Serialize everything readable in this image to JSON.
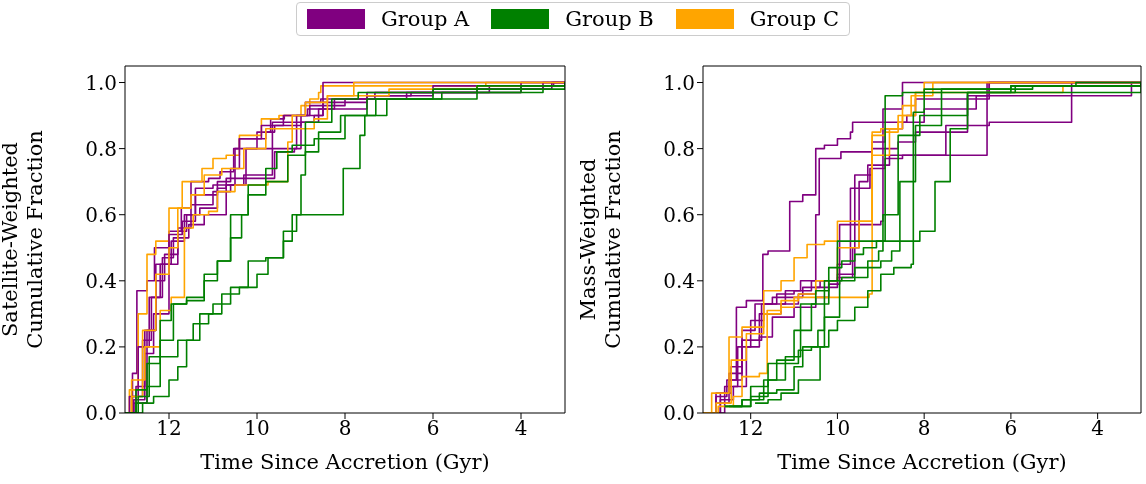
{
  "chart_data": [
    {
      "type": "step",
      "xlabel": "Time Since Accretion (Gyr)",
      "ylabel": "Satellite-Weighted\nCumulative Fraction",
      "xlim": [
        13.0,
        3.0
      ],
      "ylim": [
        0,
        1.05
      ],
      "xticks": [
        12,
        10,
        8,
        6,
        4
      ],
      "yticks": [
        {
          "value": 0,
          "label": "0.0"
        },
        {
          "value": 0.2,
          "label": "0.2"
        },
        {
          "value": 0.4,
          "label": "0.4"
        },
        {
          "value": 0.6,
          "label": "0.6"
        },
        {
          "value": 0.8,
          "label": "0.8"
        },
        {
          "value": 1.0,
          "label": "1.0"
        }
      ],
      "legend": "top",
      "marker": "none",
      "line_style": "solid",
      "series": [
        {
          "name": "Group A",
          "color": "#800080",
          "x": [
            13.0,
            12.83,
            12.73,
            12.5,
            12.33,
            12.0,
            11.72,
            11.5,
            11.1,
            10.84,
            10.53,
            10.0,
            9.69,
            9.38,
            8.85,
            8.24,
            7.32,
            4.72,
            3.26,
            3.0
          ],
          "values": [
            0,
            0.12,
            0.37,
            0.4,
            0.5,
            0.55,
            0.62,
            0.7,
            0.71,
            0.73,
            0.8,
            0.85,
            0.89,
            0.9,
            0.92,
            0.95,
            0.97,
            0.99,
            1.0,
            1.0
          ]
        },
        {
          "name": "Group B",
          "color": "#008000",
          "x": [
            13.0,
            12.6,
            12.35,
            12.0,
            11.8,
            11.6,
            11.3,
            11.0,
            10.6,
            10.2,
            9.8,
            9.4,
            9.1,
            8.04,
            7.66,
            7.55,
            7.05,
            5.8,
            3.5,
            3.0
          ],
          "values": [
            0,
            0.03,
            0.05,
            0.1,
            0.14,
            0.22,
            0.3,
            0.33,
            0.38,
            0.46,
            0.47,
            0.55,
            0.6,
            0.74,
            0.84,
            0.9,
            0.95,
            0.97,
            0.99,
            1.0
          ]
        },
        {
          "name": "Group C",
          "color": "#ffa500",
          "x": [
            13.0,
            12.9,
            12.7,
            12.5,
            12.3,
            12.0,
            11.7,
            11.25,
            11.0,
            10.7,
            10.4,
            9.9,
            9.5,
            9.0,
            8.8,
            8.6,
            8.55,
            4.8,
            3.0
          ],
          "values": [
            0,
            0.07,
            0.3,
            0.48,
            0.52,
            0.62,
            0.7,
            0.74,
            0.77,
            0.78,
            0.84,
            0.89,
            0.9,
            0.93,
            0.95,
            0.97,
            0.99,
            1.0,
            1.0
          ]
        },
        {
          "color": "#800080",
          "x": [
            13.0,
            12.9,
            12.7,
            12.45,
            12.2,
            11.95,
            11.65,
            11.4,
            10.9,
            10.6,
            10.4,
            9.9,
            9.4,
            8.9,
            8.55,
            8.5,
            3.0
          ],
          "values": [
            0,
            0.05,
            0.2,
            0.35,
            0.45,
            0.52,
            0.6,
            0.66,
            0.7,
            0.74,
            0.83,
            0.87,
            0.9,
            0.94,
            0.95,
            1.0,
            1.0
          ]
        },
        {
          "color": "#800080",
          "x": [
            13.0,
            12.8,
            12.5,
            12.3,
            12.0,
            11.7,
            11.4,
            11.0,
            10.5,
            10.4,
            9.8,
            9.6,
            9.0,
            8.7,
            8.5,
            7.5,
            6.5,
            5.0,
            3.3,
            3.0
          ],
          "values": [
            0,
            0.03,
            0.25,
            0.45,
            0.54,
            0.58,
            0.68,
            0.69,
            0.8,
            0.83,
            0.85,
            0.87,
            0.88,
            0.9,
            0.94,
            0.96,
            0.97,
            0.98,
            1.0,
            1.0
          ]
        },
        {
          "color": "#800080",
          "x": [
            13.0,
            12.75,
            12.55,
            12.3,
            12.1,
            11.8,
            11.6,
            11.3,
            10.9,
            10.7,
            10.2,
            9.6,
            9.15,
            9.1,
            8.6,
            7.5,
            6.0,
            3.5,
            3.0
          ],
          "values": [
            0,
            0.08,
            0.25,
            0.4,
            0.48,
            0.55,
            0.6,
            0.62,
            0.68,
            0.71,
            0.71,
            0.79,
            0.8,
            0.88,
            0.92,
            0.96,
            0.98,
            1.0,
            1.0
          ]
        },
        {
          "color": "#800080",
          "x": [
            13.0,
            12.85,
            12.6,
            12.4,
            12.15,
            11.9,
            11.55,
            11.2,
            10.7,
            10.3,
            9.65,
            9.0,
            8.8,
            8.0,
            6.6,
            4.0,
            3.0
          ],
          "values": [
            0,
            0.05,
            0.22,
            0.35,
            0.47,
            0.53,
            0.57,
            0.6,
            0.69,
            0.72,
            0.8,
            0.9,
            0.93,
            0.95,
            0.97,
            1.0,
            1.0
          ]
        },
        {
          "color": "#800080",
          "x": [
            13.0,
            12.8,
            12.55,
            12.35,
            12.0,
            11.8,
            11.5,
            11.0,
            10.6,
            10.25,
            9.65,
            9.1,
            8.5,
            7.5,
            6.0,
            3.0
          ],
          "values": [
            0,
            0.04,
            0.18,
            0.3,
            0.45,
            0.56,
            0.63,
            0.67,
            0.69,
            0.8,
            0.88,
            0.9,
            0.95,
            0.97,
            0.99,
            1.0
          ]
        },
        {
          "color": "#ffa500",
          "x": [
            13.0,
            12.85,
            12.55,
            12.2,
            11.95,
            11.65,
            11.45,
            11.1,
            10.9,
            10.5,
            10.3,
            9.75,
            9.3,
            9.2,
            8.7,
            8.4,
            7.8,
            3.0
          ],
          "values": [
            0,
            0.1,
            0.2,
            0.31,
            0.35,
            0.56,
            0.6,
            0.61,
            0.67,
            0.69,
            0.69,
            0.7,
            0.82,
            0.86,
            0.89,
            0.96,
            1.0,
            1.0
          ]
        },
        {
          "color": "#ffa500",
          "x": [
            13.0,
            12.85,
            12.6,
            12.3,
            12.0,
            11.8,
            11.5,
            11.2,
            10.8,
            10.3,
            9.8,
            9.2,
            8.9,
            8.4,
            7.0,
            5.0,
            3.0
          ],
          "values": [
            0,
            0.05,
            0.25,
            0.42,
            0.5,
            0.62,
            0.66,
            0.72,
            0.74,
            0.8,
            0.86,
            0.9,
            0.94,
            0.96,
            0.98,
            0.99,
            1.0
          ]
        },
        {
          "color": "#008000",
          "x": [
            13.0,
            12.75,
            12.5,
            12.2,
            11.8,
            11.45,
            11.1,
            10.8,
            10.4,
            10.0,
            9.75,
            9.4,
            9.2,
            9.0,
            8.9,
            8.6,
            8.1,
            7.3,
            6.0,
            3.0
          ],
          "values": [
            0,
            0.03,
            0.08,
            0.17,
            0.22,
            0.27,
            0.3,
            0.36,
            0.38,
            0.42,
            0.47,
            0.52,
            0.6,
            0.72,
            0.79,
            0.85,
            0.9,
            0.95,
            0.98,
            1.0
          ]
        },
        {
          "color": "#008000",
          "x": [
            13.0,
            12.75,
            12.5,
            12.2,
            11.9,
            11.6,
            11.2,
            10.9,
            10.6,
            10.35,
            10.2,
            9.8,
            9.55,
            9.2,
            8.7,
            8.0,
            7.5,
            5.0,
            3.0
          ],
          "values": [
            0,
            0.07,
            0.15,
            0.22,
            0.33,
            0.34,
            0.4,
            0.46,
            0.53,
            0.6,
            0.66,
            0.74,
            0.79,
            0.81,
            0.83,
            0.9,
            0.95,
            0.99,
            1.0
          ]
        },
        {
          "color": "#008000",
          "x": [
            13.0,
            12.7,
            12.45,
            12.2,
            11.95,
            11.6,
            11.2,
            10.9,
            10.6,
            10.2,
            9.8,
            9.3,
            8.9,
            8.3,
            7.7,
            4.0,
            3.0
          ],
          "values": [
            0,
            0.05,
            0.17,
            0.28,
            0.33,
            0.35,
            0.42,
            0.46,
            0.6,
            0.69,
            0.7,
            0.78,
            0.88,
            0.95,
            0.97,
            0.99,
            1.0
          ]
        }
      ]
    },
    {
      "type": "step",
      "xlabel": "Time Since Accretion (Gyr)",
      "ylabel": "Mass-Weighted\nCumulative Fraction",
      "xlim": [
        13.1,
        3.0
      ],
      "ylim": [
        0,
        1.05
      ],
      "xticks": [
        12,
        10,
        8,
        6,
        4
      ],
      "yticks": [
        {
          "value": 0,
          "label": "0.0"
        },
        {
          "value": 0.2,
          "label": "0.2"
        },
        {
          "value": 0.4,
          "label": "0.4"
        },
        {
          "value": 0.6,
          "label": "0.6"
        },
        {
          "value": 0.8,
          "label": "0.8"
        },
        {
          "value": 1.0,
          "label": "1.0"
        }
      ],
      "marker": "none",
      "line_style": "solid",
      "series": [
        {
          "color": "#800080",
          "x": [
            13.1,
            12.8,
            12.55,
            12.33,
            12.1,
            11.72,
            11.6,
            11.1,
            10.8,
            10.5,
            10.3,
            10.0,
            9.7,
            9.65,
            8.7,
            8.4,
            8.2,
            6.5,
            3.0
          ],
          "values": [
            0,
            0.05,
            0.1,
            0.32,
            0.34,
            0.48,
            0.49,
            0.64,
            0.66,
            0.8,
            0.81,
            0.83,
            0.85,
            0.88,
            0.88,
            0.9,
            0.95,
            1.0,
            1.0
          ]
        },
        {
          "color": "#800080",
          "x": [
            13.1,
            12.7,
            12.45,
            12.2,
            11.9,
            11.5,
            11.2,
            10.85,
            10.5,
            10.42,
            9.92,
            9.2,
            8.6,
            8.2,
            7.0,
            6.5,
            3.0
          ],
          "values": [
            0,
            0.06,
            0.14,
            0.25,
            0.33,
            0.35,
            0.37,
            0.4,
            0.6,
            0.77,
            0.79,
            0.8,
            0.82,
            0.85,
            0.96,
            1.0,
            1.0
          ]
        },
        {
          "color": "#800080",
          "x": [
            13.1,
            12.8,
            12.5,
            12.2,
            11.8,
            11.5,
            11.0,
            10.5,
            10.2,
            9.95,
            9.0,
            8.95,
            8.5,
            3.0
          ],
          "values": [
            0,
            0.03,
            0.1,
            0.22,
            0.23,
            0.29,
            0.32,
            0.35,
            0.39,
            0.57,
            0.58,
            0.92,
            1.0,
            1.0
          ]
        },
        {
          "color": "#800080",
          "x": [
            13.1,
            12.7,
            12.4,
            12.1,
            11.8,
            11.3,
            10.9,
            10.5,
            10.0,
            9.65,
            9.5,
            9.3,
            8.8,
            8.4,
            7.5,
            6.5,
            4.6,
            3.0
          ],
          "values": [
            0,
            0.04,
            0.08,
            0.2,
            0.3,
            0.33,
            0.36,
            0.38,
            0.41,
            0.5,
            0.7,
            0.75,
            0.78,
            0.78,
            0.87,
            0.88,
            1.0,
            1.0
          ]
        },
        {
          "color": "#800080",
          "x": [
            13.1,
            12.8,
            12.5,
            12.2,
            11.75,
            11.4,
            11.0,
            10.6,
            10.0,
            9.7,
            9.25,
            8.9,
            8.5,
            6.55,
            3.0
          ],
          "values": [
            0,
            0.06,
            0.12,
            0.22,
            0.33,
            0.36,
            0.37,
            0.4,
            0.45,
            0.68,
            0.74,
            0.77,
            0.78,
            1.0,
            1.0
          ]
        },
        {
          "color": "#800080",
          "x": [
            13.1,
            12.6,
            12.3,
            12.0,
            11.7,
            11.2,
            10.8,
            10.4,
            10.0,
            9.6,
            9.2,
            8.9,
            8.5,
            8.0,
            6.8,
            3.22,
            3.0
          ],
          "values": [
            0,
            0.08,
            0.2,
            0.28,
            0.33,
            0.35,
            0.38,
            0.4,
            0.42,
            0.72,
            0.82,
            0.86,
            0.88,
            0.92,
            0.96,
            1.0,
            1.0
          ]
        },
        {
          "color": "#ffa500",
          "x": [
            13.1,
            12.9,
            12.5,
            12.2,
            11.7,
            11.3,
            11.0,
            10.7,
            10.3,
            10.0,
            9.65,
            9.2,
            9.0,
            8.6,
            8.5,
            8.2,
            8.0,
            3.0
          ],
          "values": [
            0,
            0.06,
            0.23,
            0.26,
            0.37,
            0.4,
            0.47,
            0.51,
            0.52,
            0.58,
            0.58,
            0.85,
            0.86,
            0.88,
            0.9,
            0.97,
            1.0,
            1.0
          ]
        },
        {
          "color": "#ffa500",
          "x": [
            13.1,
            12.75,
            12.4,
            12.2,
            11.8,
            11.62,
            11.3,
            11.0,
            9.27,
            9.2,
            8.9,
            8.6,
            8.3,
            7.8,
            3.0
          ],
          "values": [
            0,
            0.02,
            0.05,
            0.11,
            0.12,
            0.31,
            0.32,
            0.35,
            0.36,
            0.84,
            0.85,
            0.9,
            0.96,
            1.0,
            1.0
          ]
        },
        {
          "color": "#ffa500",
          "x": [
            13.1,
            12.8,
            12.45,
            12.1,
            11.7,
            11.3,
            10.9,
            10.5,
            10.0,
            9.5,
            9.2,
            8.8,
            8.5,
            8.2,
            4.8,
            3.0
          ],
          "values": [
            0,
            0.03,
            0.16,
            0.24,
            0.3,
            0.34,
            0.36,
            0.4,
            0.5,
            0.58,
            0.78,
            0.86,
            0.93,
            0.97,
            0.99,
            1.0
          ]
        },
        {
          "color": "#008000",
          "x": [
            11.9,
            11.6,
            11.3,
            10.9,
            10.4,
            10.2,
            10.0,
            9.6,
            9.3,
            9.0,
            8.7,
            8.3,
            8.25,
            8.0,
            6.0,
            4.5,
            3.0
          ],
          "values": [
            0.03,
            0.04,
            0.06,
            0.1,
            0.2,
            0.25,
            0.28,
            0.32,
            0.37,
            0.42,
            0.44,
            0.45,
            0.91,
            0.98,
            0.99,
            1.0,
            1.0
          ]
        },
        {
          "color": "#008000",
          "x": [
            12.6,
            12.2,
            11.8,
            11.4,
            11.0,
            10.8,
            10.45,
            10.3,
            10.0,
            8.1,
            7.75,
            7.4,
            7.0,
            5.9,
            3.0
          ],
          "values": [
            0.02,
            0.04,
            0.06,
            0.07,
            0.14,
            0.2,
            0.25,
            0.4,
            0.52,
            0.55,
            0.7,
            0.86,
            0.97,
            0.99,
            1.0
          ]
        },
        {
          "color": "#008000",
          "x": [
            12.5,
            12.0,
            11.6,
            11.2,
            10.9,
            10.6,
            10.3,
            9.95,
            9.6,
            9.3,
            9.0,
            8.75,
            8.56,
            8.2,
            7.6,
            5.5,
            3.0
          ],
          "values": [
            0.02,
            0.05,
            0.1,
            0.15,
            0.19,
            0.2,
            0.29,
            0.4,
            0.41,
            0.44,
            0.46,
            0.49,
            0.7,
            0.87,
            0.98,
            0.99,
            1.0
          ]
        },
        {
          "color": "#008000",
          "x": [
            12.6,
            12.2,
            11.7,
            11.4,
            11.0,
            10.6,
            10.2,
            9.9,
            9.6,
            9.3,
            9.05,
            8.95,
            8.9,
            8.5,
            3.0
          ],
          "values": [
            0.02,
            0.04,
            0.1,
            0.16,
            0.25,
            0.33,
            0.4,
            0.41,
            0.44,
            0.46,
            0.49,
            0.6,
            0.96,
            0.97,
            1.0
          ]
        },
        {
          "color": "#008000",
          "x": [
            12.4,
            12.0,
            11.6,
            11.2,
            10.85,
            10.5,
            10.2,
            9.9,
            9.6,
            9.4,
            9.1,
            8.9,
            8.6,
            8.1,
            7.0,
            6.0,
            3.0
          ],
          "values": [
            0.02,
            0.08,
            0.15,
            0.17,
            0.33,
            0.37,
            0.44,
            0.46,
            0.48,
            0.5,
            0.52,
            0.6,
            0.84,
            0.9,
            0.97,
            0.99,
            1.0
          ]
        }
      ]
    }
  ]
}
